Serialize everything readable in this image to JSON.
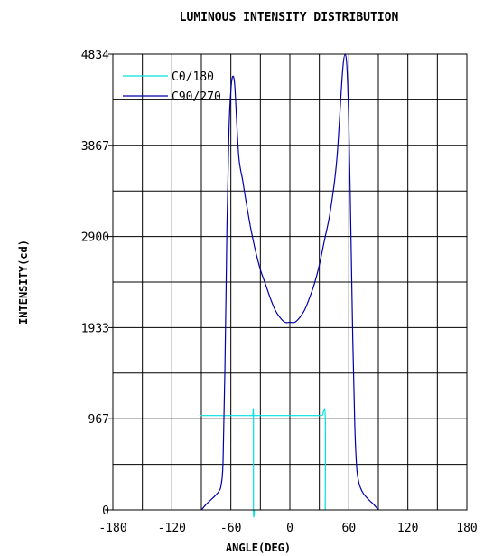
{
  "chart_data": {
    "type": "line",
    "title": "LUMINOUS INTENSITY DISTRIBUTION",
    "xlabel": "ANGLE(DEG)",
    "ylabel": "INTENSITY(cd)",
    "xlim": [
      -180,
      180
    ],
    "ylim": [
      0,
      4834
    ],
    "x_ticks": [
      "-180",
      "-120",
      "-60",
      "0",
      "60",
      "120",
      "180"
    ],
    "y_ticks": [
      "0",
      "967",
      "1933",
      "2900",
      "3867",
      "4834"
    ],
    "grid": true,
    "legend_position": "top-left",
    "series": [
      {
        "name": "C0/180",
        "color": "#00e0e0",
        "x": [
          -36,
          -37,
          -37,
          -38,
          -42,
          -48,
          -55,
          -60,
          -65,
          -68,
          -70,
          -72,
          -75,
          -78,
          -82,
          -85,
          -90,
          -85,
          -82,
          -78,
          -75,
          -72,
          -70,
          -68,
          -65,
          -60,
          -55,
          -48,
          -42,
          -38,
          -37,
          -37,
          -36,
          -36,
          -33,
          -30,
          -27,
          -24,
          -20,
          -15,
          -10,
          -5,
          0,
          5,
          10,
          15,
          20,
          24,
          27,
          30,
          33,
          36,
          36
        ],
        "y": [
          0,
          0,
          1000,
          1000,
          1000,
          1000,
          1000,
          1000,
          1000,
          1000,
          1000,
          1000,
          1000,
          1000,
          1000,
          1000,
          1000,
          1000,
          1000,
          1000,
          1000,
          1000,
          1000,
          1000,
          1000,
          1000,
          1000,
          1000,
          1000,
          1000,
          1000,
          1000,
          1000,
          1000,
          1000,
          1000,
          1000,
          1000,
          1000,
          1000,
          1000,
          1000,
          1000,
          1000,
          1000,
          1000,
          1000,
          1000,
          1000,
          1000,
          1000,
          1000,
          0
        ]
      },
      {
        "name": "C90/270",
        "color": "#0000aa",
        "x": [
          -90,
          -85,
          -80,
          -75,
          -72,
          -70,
          -68,
          -66,
          -64,
          -62,
          -60,
          -58,
          -56,
          -54,
          -52,
          -50,
          -48,
          -45,
          -40,
          -35,
          -30,
          -25,
          -20,
          -15,
          -10,
          -5,
          0,
          5,
          10,
          15,
          20,
          25,
          30,
          35,
          40,
          45,
          48,
          50,
          52,
          54,
          56,
          58,
          60,
          62,
          64,
          66,
          68,
          70,
          72,
          75,
          80,
          85,
          90
        ],
        "y": [
          0,
          60,
          110,
          160,
          200,
          260,
          500,
          1500,
          3000,
          4000,
          4450,
          4600,
          4500,
          4100,
          3750,
          3600,
          3500,
          3300,
          3000,
          2750,
          2550,
          2400,
          2250,
          2120,
          2040,
          1990,
          1990,
          1990,
          2040,
          2120,
          2250,
          2400,
          2600,
          2850,
          3100,
          3450,
          3750,
          4050,
          4400,
          4700,
          4830,
          4700,
          4100,
          3000,
          1800,
          900,
          450,
          300,
          230,
          170,
          110,
          60,
          0
        ]
      }
    ]
  }
}
